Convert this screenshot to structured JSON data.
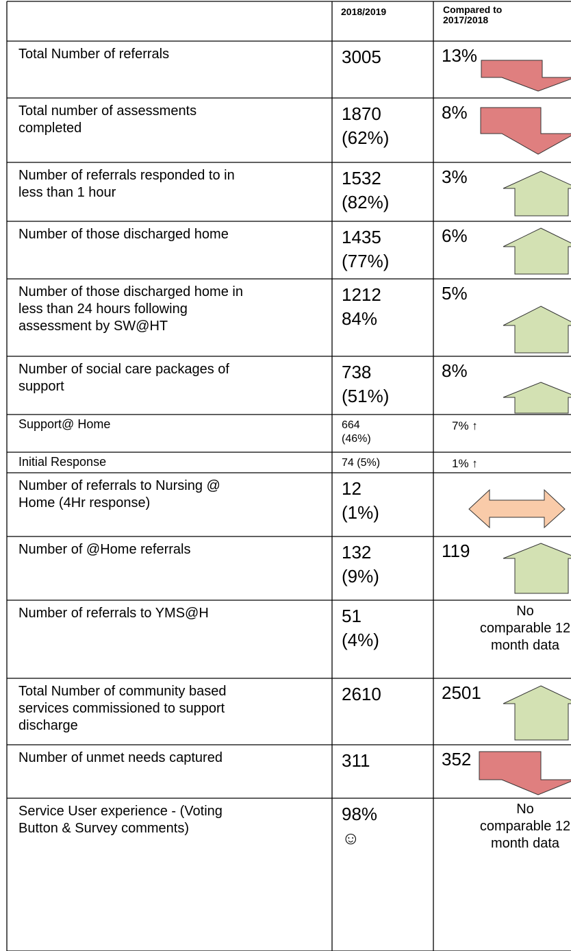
{
  "header": {
    "period": "2018/2019",
    "compared": [
      "Compared to",
      "2017/2018"
    ]
  },
  "rows": [
    {
      "label": [
        "Total Number of referrals"
      ],
      "value": [
        "3005"
      ],
      "change": [
        "13%"
      ]
    },
    {
      "label": [
        "Total number of assessments",
        "completed"
      ],
      "value": [
        "1870",
        "(62%)"
      ],
      "change": [
        "8%"
      ]
    },
    {
      "label": [
        "Number of referrals responded to in",
        "less than 1 hour"
      ],
      "value": [
        "1532",
        "(82%)"
      ],
      "change": [
        "3%"
      ]
    },
    {
      "label": [
        "Number of those discharged home"
      ],
      "value": [
        "1435",
        "(77%)"
      ],
      "change": [
        "6%"
      ]
    },
    {
      "label": [
        "Number of those discharged home in",
        "less than 24 hours following",
        "assessment by SW@HT"
      ],
      "value": [
        "1212",
        "84%"
      ],
      "change": [
        "5%"
      ]
    },
    {
      "label": [
        "Number of social care packages of",
        "support"
      ],
      "value": [
        "738",
        "(51%)"
      ],
      "change": [
        "8%"
      ]
    },
    {
      "label": [
        "Support@ Home"
      ],
      "value": [
        "664",
        "(46%)"
      ],
      "change": [
        "7%   ↑"
      ]
    },
    {
      "label": [
        "Initial Response"
      ],
      "value": [
        "74 (5%)"
      ],
      "change": [
        "1%   ↑"
      ]
    },
    {
      "label": [
        "Number of referrals to Nursing @",
        "Home (4Hr response)"
      ],
      "value": [
        "12",
        "(1%)"
      ],
      "change": []
    },
    {
      "label": [
        "Number of @Home referrals"
      ],
      "value": [
        "132",
        "(9%)"
      ],
      "change": [
        "119"
      ]
    },
    {
      "label": [
        "Number of referrals to YMS@H"
      ],
      "value": [
        "51",
        "(4%)"
      ],
      "change": [
        "No",
        "comparable 12",
        "month data"
      ]
    },
    {
      "label": [
        "Total Number of community based",
        "services commissioned to support",
        "discharge"
      ],
      "value": [
        "2610"
      ],
      "change": [
        "2501"
      ]
    },
    {
      "label": [
        "Number of unmet needs captured"
      ],
      "value": [
        "311"
      ],
      "change": [
        "352"
      ]
    },
    {
      "label": [
        "Service User experience - (Voting",
        "Button & Survey comments)"
      ],
      "value": [
        "98%",
        "☺"
      ],
      "change": [
        "No",
        "comparable 12",
        "month data"
      ]
    }
  ]
}
